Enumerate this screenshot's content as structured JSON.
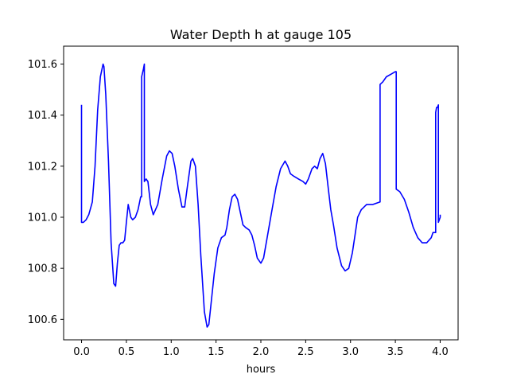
{
  "chart_data": {
    "type": "line",
    "title": "Water Depth h at gauge 105",
    "xlabel": "hours",
    "ylabel": "",
    "xlim": [
      -0.2,
      4.2
    ],
    "ylim": [
      100.52,
      101.67
    ],
    "xticks": [
      0.0,
      0.5,
      1.0,
      1.5,
      2.0,
      2.5,
      3.0,
      3.5,
      4.0
    ],
    "xtick_labels": [
      "0.0",
      "0.5",
      "1.0",
      "1.5",
      "2.0",
      "2.5",
      "3.0",
      "3.5",
      "4.0"
    ],
    "yticks": [
      100.6,
      100.8,
      101.0,
      101.2,
      101.4,
      101.6
    ],
    "ytick_labels": [
      "100.6",
      "100.8",
      "101.0",
      "101.2",
      "101.4",
      "101.6"
    ],
    "grid": false,
    "series": [
      {
        "color": "#0000ff",
        "x": [
          0.0,
          0.0,
          0.02,
          0.05,
          0.08,
          0.12,
          0.15,
          0.18,
          0.21,
          0.24,
          0.25,
          0.27,
          0.3,
          0.33,
          0.36,
          0.38,
          0.4,
          0.42,
          0.44,
          0.46,
          0.48,
          0.5,
          0.52,
          0.55,
          0.57,
          0.6,
          0.63,
          0.66,
          0.67,
          0.67,
          0.69,
          0.7,
          0.7,
          0.72,
          0.74,
          0.77,
          0.8,
          0.85,
          0.9,
          0.95,
          0.98,
          1.01,
          1.04,
          1.08,
          1.12,
          1.15,
          1.18,
          1.22,
          1.24,
          1.27,
          1.3,
          1.33,
          1.37,
          1.4,
          1.42,
          1.45,
          1.48,
          1.52,
          1.56,
          1.6,
          1.62,
          1.65,
          1.68,
          1.71,
          1.74,
          1.77,
          1.8,
          1.83,
          1.87,
          1.9,
          1.93,
          1.96,
          2.0,
          2.03,
          2.07,
          2.12,
          2.17,
          2.22,
          2.27,
          2.3,
          2.33,
          2.37,
          2.42,
          2.47,
          2.5,
          2.53,
          2.57,
          2.6,
          2.63,
          2.66,
          2.69,
          2.72,
          2.75,
          2.78,
          2.81,
          2.85,
          2.9,
          2.94,
          2.98,
          3.02,
          3.05,
          3.08,
          3.12,
          3.18,
          3.25,
          3.33,
          3.33,
          3.36,
          3.4,
          3.45,
          3.5,
          3.51,
          3.51,
          3.55,
          3.6,
          3.65,
          3.7,
          3.75,
          3.8,
          3.85,
          3.9,
          3.92,
          3.95,
          3.95,
          3.96,
          3.97,
          3.98,
          3.98,
          4.0,
          4.0
        ],
        "y": [
          101.44,
          100.98,
          100.98,
          100.99,
          101.01,
          101.06,
          101.2,
          101.42,
          101.55,
          101.6,
          101.59,
          101.48,
          101.22,
          100.9,
          100.74,
          100.73,
          100.82,
          100.89,
          100.9,
          100.9,
          100.91,
          100.98,
          101.05,
          101.0,
          100.99,
          101.0,
          101.03,
          101.08,
          101.08,
          101.55,
          101.58,
          101.6,
          101.14,
          101.15,
          101.14,
          101.05,
          101.01,
          101.05,
          101.15,
          101.24,
          101.26,
          101.25,
          101.2,
          101.11,
          101.04,
          101.04,
          101.12,
          101.22,
          101.23,
          101.2,
          101.05,
          100.85,
          100.63,
          100.57,
          100.58,
          100.68,
          100.78,
          100.88,
          100.92,
          100.93,
          100.96,
          101.03,
          101.08,
          101.09,
          101.07,
          101.02,
          100.97,
          100.96,
          100.95,
          100.93,
          100.89,
          100.84,
          100.82,
          100.84,
          100.92,
          101.02,
          101.12,
          101.19,
          101.22,
          101.2,
          101.17,
          101.16,
          101.15,
          101.14,
          101.13,
          101.15,
          101.19,
          101.2,
          101.19,
          101.23,
          101.25,
          101.21,
          101.12,
          101.03,
          100.97,
          100.88,
          100.81,
          100.79,
          100.8,
          100.86,
          100.93,
          101.0,
          101.03,
          101.05,
          101.05,
          101.06,
          101.52,
          101.53,
          101.55,
          101.56,
          101.57,
          101.57,
          101.11,
          101.1,
          101.07,
          101.02,
          100.96,
          100.92,
          100.9,
          100.9,
          100.92,
          100.94,
          100.94,
          101.41,
          101.43,
          101.43,
          101.44,
          100.98,
          101.0,
          101.01
        ]
      }
    ]
  }
}
